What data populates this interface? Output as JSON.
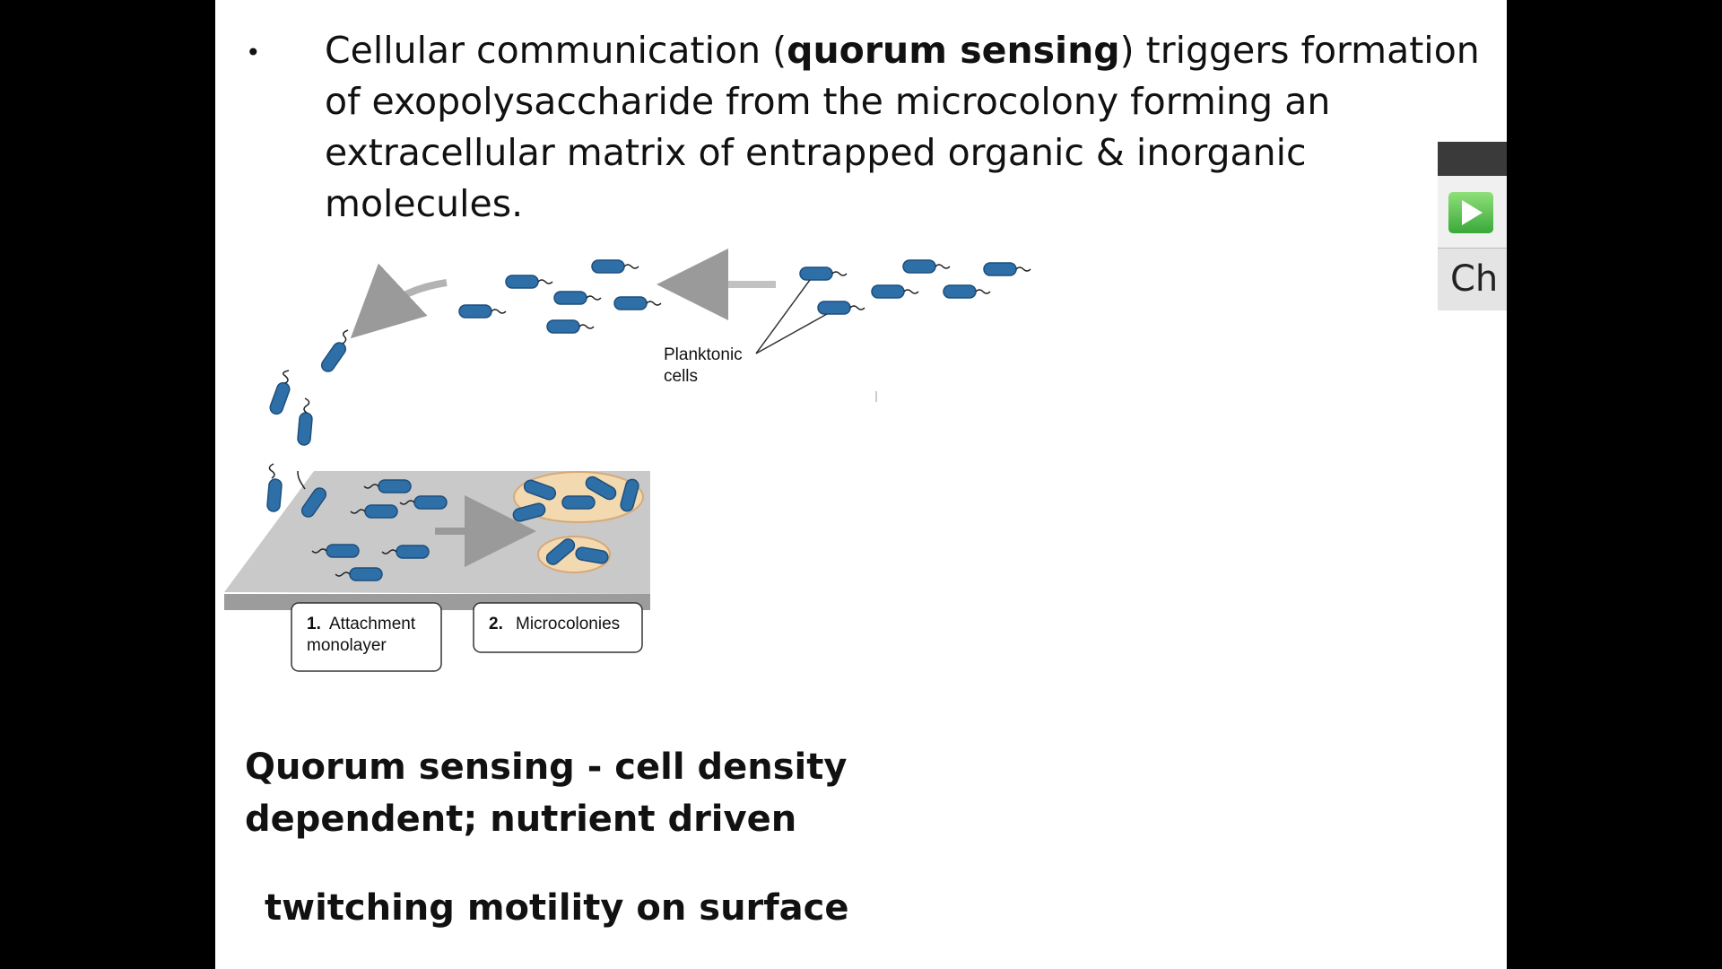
{
  "slide": {
    "bullet": {
      "part1": "Cellular communication (",
      "bold": "quorum sensing",
      "part2": ") triggers formation of exopolysaccharide  from the microcolony forming an extracellular matrix of entrapped organic & inorganic molecules."
    },
    "diagram": {
      "planktonic_label_line1": "Planktonic",
      "planktonic_label_line2": "cells",
      "step1_number": "1.",
      "step1_line1": "Attachment",
      "step1_line2": "monolayer",
      "step2_number": "2.",
      "step2_label": "Microcolonies"
    },
    "heading_line1": "Quorum sensing - cell density",
    "heading_line2": "dependent; nutrient driven",
    "subheading": "twitching motility on surface"
  },
  "side_widget": {
    "label": "Ch",
    "play_icon": "play-icon"
  },
  "colors": {
    "cell_fill": "#2f6fa8",
    "surface": "#c9c9c9",
    "matrix": "#f3d9b0",
    "background": "#000000",
    "slide": "#ffffff"
  }
}
